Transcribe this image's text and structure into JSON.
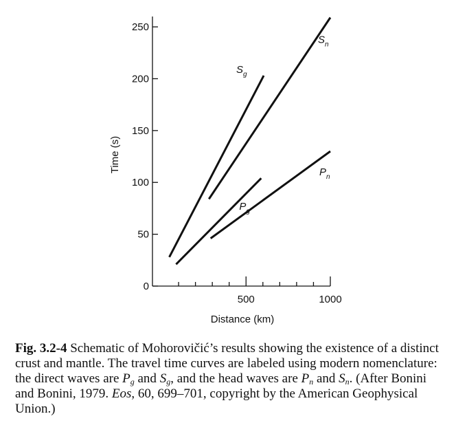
{
  "chart_data": {
    "type": "line",
    "xlabel": "Distance (km)",
    "ylabel": "Time (s)",
    "xlim": [
      -55,
      1000
    ],
    "ylim": [
      0,
      260
    ],
    "xticks_labeled": [
      500,
      1000
    ],
    "xticks_minor": [
      100,
      200,
      300,
      400,
      600,
      700,
      800,
      900
    ],
    "yticks": [
      0,
      50,
      100,
      150,
      200,
      250
    ],
    "grid": false,
    "series": [
      {
        "name": "Sg",
        "base": "S",
        "sub": "g",
        "x": [
          45,
          605
        ],
        "y": [
          28,
          203
        ]
      },
      {
        "name": "Sn",
        "base": "S",
        "sub": "n",
        "x": [
          280,
          1000
        ],
        "y": [
          84,
          259
        ]
      },
      {
        "name": "Pg",
        "base": "P",
        "sub": "g",
        "x": [
          85,
          590
        ],
        "y": [
          21,
          104
        ]
      },
      {
        "name": "Pn",
        "base": "P",
        "sub": "n",
        "x": [
          290,
          1000
        ],
        "y": [
          46,
          130
        ]
      }
    ]
  },
  "caption": {
    "figure_number": "Fig. 3.2-4",
    "text_1": " Schematic of Mohorovičić’s results showing the existence of a distinct crust and mantle. The travel time curves are labeled using modern nomenclature: the direct waves are ",
    "pg_base": "P",
    "pg_sub": "g",
    "text_2": " and ",
    "sg_base": "S",
    "sg_sub": "g",
    "text_3": ", and the head waves are ",
    "pn_base": "P",
    "pn_sub": "n",
    "text_4": " and ",
    "sn_base": "S",
    "sn_sub": "n",
    "text_5": ". (After Bonini and Bonini, 1979. ",
    "journal": "Eos",
    "text_6": ", 60, 699–701, copyright by the American Geophysical Union.)"
  }
}
